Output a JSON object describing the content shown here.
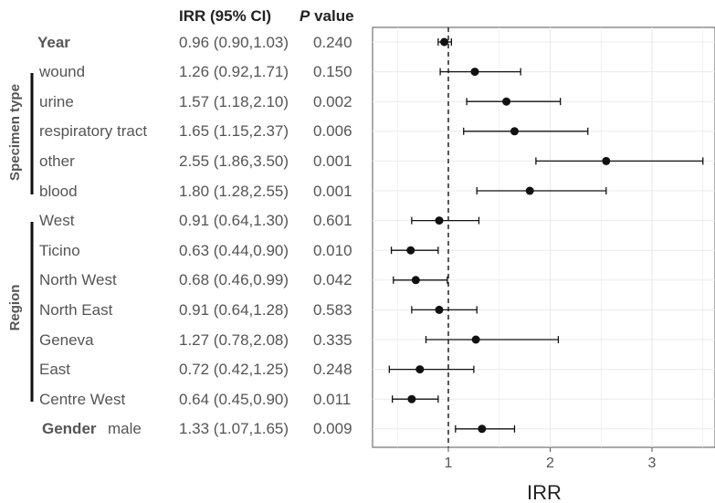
{
  "header": {
    "ci_label": "IRR (95% CI)",
    "p_label_italic": "P",
    "p_label_rest": " value"
  },
  "groups": {
    "specimen": "Specimen type",
    "region": "Region"
  },
  "rows": [
    {
      "label": "Year",
      "bold": true,
      "ci_text": "0.96 (0.90,1.03)",
      "p": "0.240",
      "est": 0.96,
      "lo": 0.9,
      "hi": 1.03
    },
    {
      "label": "wound",
      "ci_text": "1.26 (0.92,1.71)",
      "p": "0.150",
      "est": 1.26,
      "lo": 0.92,
      "hi": 1.71
    },
    {
      "label": "urine",
      "ci_text": "1.57 (1.18,2.10)",
      "p": "0.002",
      "est": 1.57,
      "lo": 1.18,
      "hi": 2.1
    },
    {
      "label": "respiratory tract",
      "ci_text": "1.65 (1.15,2.37)",
      "p": "0.006",
      "est": 1.65,
      "lo": 1.15,
      "hi": 2.37
    },
    {
      "label": "other",
      "ci_text": "2.55 (1.86,3.50)",
      "p": "0.001",
      "est": 2.55,
      "lo": 1.86,
      "hi": 3.5
    },
    {
      "label": "blood",
      "ci_text": "1.80 (1.28,2.55)",
      "p": "0.001",
      "est": 1.8,
      "lo": 1.28,
      "hi": 2.55
    },
    {
      "label": "West",
      "ci_text": "0.91 (0.64,1.30)",
      "p": "0.601",
      "est": 0.91,
      "lo": 0.64,
      "hi": 1.3
    },
    {
      "label": "Ticino",
      "ci_text": "0.63 (0.44,0.90)",
      "p": "0.010",
      "est": 0.63,
      "lo": 0.44,
      "hi": 0.9
    },
    {
      "label": "North West",
      "ci_text": "0.68 (0.46,0.99)",
      "p": "0.042",
      "est": 0.68,
      "lo": 0.46,
      "hi": 0.99
    },
    {
      "label": "North East",
      "ci_text": "0.91 (0.64,1.28)",
      "p": "0.583",
      "est": 0.91,
      "lo": 0.64,
      "hi": 1.28
    },
    {
      "label": "Geneva",
      "ci_text": "1.27 (0.78,2.08)",
      "p": "0.335",
      "est": 1.27,
      "lo": 0.78,
      "hi": 2.08
    },
    {
      "label": "East",
      "ci_text": "0.72 (0.42,1.25)",
      "p": "0.248",
      "est": 0.72,
      "lo": 0.42,
      "hi": 1.25
    },
    {
      "label": "Centre West",
      "ci_text": "0.64 (0.45,0.90)",
      "p": "0.011",
      "est": 0.64,
      "lo": 0.45,
      "hi": 0.9
    },
    {
      "label": "Gender",
      "sublabel": "male",
      "bold": true,
      "ci_text": "1.33 (1.07,1.65)",
      "p": "0.009",
      "est": 1.33,
      "lo": 1.07,
      "hi": 1.65
    }
  ],
  "chart_data": {
    "type": "scatter",
    "xlabel": "IRR",
    "xticks": [
      1,
      2,
      3
    ],
    "xlim": [
      0.3,
      3.6
    ],
    "reference_line": 1,
    "grid": true,
    "categories": [
      "Year",
      "wound",
      "urine",
      "respiratory tract",
      "other",
      "blood",
      "West",
      "Ticino",
      "North West",
      "North East",
      "Geneva",
      "East",
      "Centre West",
      "Gender male"
    ],
    "estimates": [
      0.96,
      1.26,
      1.57,
      1.65,
      2.55,
      1.8,
      0.91,
      0.63,
      0.68,
      0.91,
      1.27,
      0.72,
      0.64,
      1.33
    ],
    "lower": [
      0.9,
      0.92,
      1.18,
      1.15,
      1.86,
      1.28,
      0.64,
      0.44,
      0.46,
      0.64,
      0.78,
      0.42,
      0.45,
      1.07
    ],
    "upper": [
      1.03,
      1.71,
      2.1,
      2.37,
      3.5,
      2.55,
      1.3,
      0.9,
      0.99,
      1.28,
      2.08,
      1.25,
      0.9,
      1.65
    ]
  }
}
